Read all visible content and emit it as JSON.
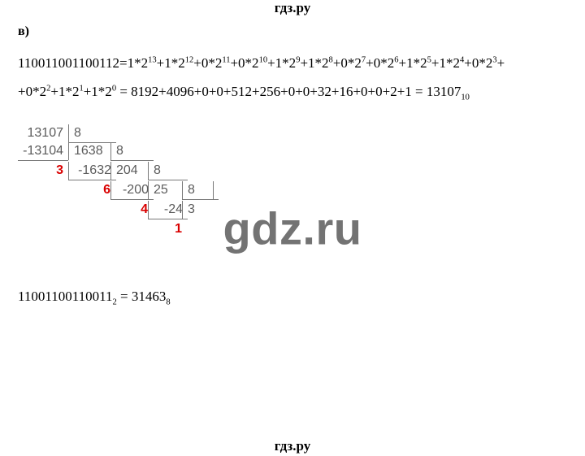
{
  "header": "гдз.ру",
  "footer": "гдз.ру",
  "watermark": "gdz.ru",
  "part_label": "в)",
  "line1_html": "110011001100112=1*2<sup>13</sup>+1*2<sup>12</sup>+0*2<sup>11</sup>+0*2<sup>10</sup>+1*2<sup>9</sup>+1*2<sup>8</sup>+0*2<sup>7</sup>+0*2<sup>6</sup>+1*2<sup>5</sup>+1*2<sup>4</sup>+0*2<sup>3</sup>+",
  "line2_html": "+0*2<sup>2</sup>+1*2<sup>1</sup>+1*2<sup>0</sup> = 8192+4096+0+0+512+256+0+0+32+16+0+0+2+1 = 13107<sub>10</sub>",
  "answer_html": "11001100110011<sub>2</sub> = 31463<sub>8</sub>",
  "division": {
    "s1": {
      "dividend": "13107",
      "divisor": "8",
      "sub": "-13104",
      "rem": "3",
      "quot": "1638"
    },
    "s2": {
      "divisor": "8",
      "sub": "-1632",
      "rem": "6",
      "quot": "204"
    },
    "s3": {
      "divisor": "8",
      "sub": "-200",
      "rem": "4",
      "quot": "25"
    },
    "s4": {
      "divisor": "8",
      "sub": "-24",
      "rem": "1",
      "quot": "3"
    }
  }
}
